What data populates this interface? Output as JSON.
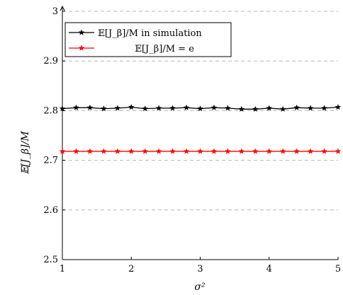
{
  "chart_data": {
    "type": "line",
    "title": "",
    "xlabel": "σ²",
    "ylabel": "𝔼[J_β]/M",
    "xlim": [
      1,
      5
    ],
    "ylim": [
      2.5,
      3
    ],
    "x_ticks": [
      "1",
      "2",
      "3",
      "4",
      "5"
    ],
    "y_ticks": [
      "2.5",
      "2.6",
      "2.7",
      "2.8",
      "2.9",
      "3"
    ],
    "grid": "horizontal dashed",
    "legend_position": "top-left",
    "x": [
      1,
      1.2,
      1.4,
      1.6,
      1.8,
      2,
      2.2,
      2.4,
      2.6,
      2.8,
      3,
      3.2,
      3.4,
      3.6,
      3.8,
      4,
      4.2,
      4.4,
      4.6,
      4.8,
      5
    ],
    "series": [
      {
        "name": "𝔼[J_β]/M in simulation",
        "color": "#000000",
        "marker": "star",
        "values": [
          2.804,
          2.806,
          2.806,
          2.804,
          2.805,
          2.807,
          2.804,
          2.805,
          2.805,
          2.806,
          2.804,
          2.806,
          2.805,
          2.803,
          2.803,
          2.805,
          2.803,
          2.806,
          2.805,
          2.805,
          2.807
        ]
      },
      {
        "name": "𝔼[J_β]/M = e",
        "color": "#ff0000",
        "marker": "star",
        "values": [
          2.718,
          2.718,
          2.718,
          2.718,
          2.718,
          2.718,
          2.718,
          2.718,
          2.718,
          2.718,
          2.718,
          2.718,
          2.718,
          2.718,
          2.718,
          2.718,
          2.718,
          2.718,
          2.718,
          2.718,
          2.718
        ]
      }
    ]
  }
}
